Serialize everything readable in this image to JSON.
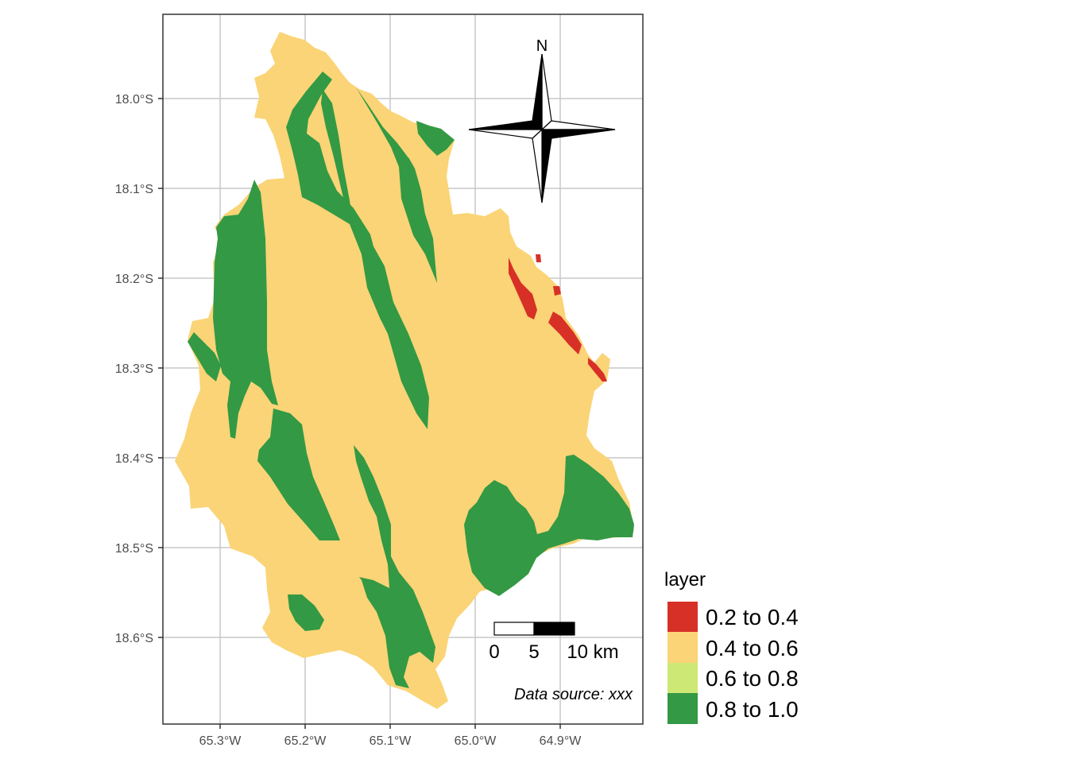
{
  "colors": {
    "c1": "#d73027",
    "c2": "#fad476",
    "c3": "#cde875",
    "c4": "#339944",
    "grid": "#c8c8c8",
    "panel_border": "#333333"
  },
  "axes": {
    "x_ticks": [
      "65.3°W",
      "65.2°W",
      "65.1°W",
      "65.0°W",
      "64.9°W"
    ],
    "y_ticks": [
      "18.0°S",
      "18.1°S",
      "18.2°S",
      "18.3°S",
      "18.4°S",
      "18.5°S",
      "18.6°S"
    ]
  },
  "north_arrow": {
    "label": "N"
  },
  "scale_bar": {
    "labels": [
      "0",
      "5",
      "10 km"
    ]
  },
  "caption": "Data source: xxx",
  "legend": {
    "title": "layer",
    "items": [
      {
        "label": "0.2 to 0.4",
        "color": "#d73027"
      },
      {
        "label": "0.4 to 0.6",
        "color": "#fad476"
      },
      {
        "label": "0.6 to 0.8",
        "color": "#cde875"
      },
      {
        "label": "0.8 to 1.0",
        "color": "#339944"
      }
    ]
  }
}
